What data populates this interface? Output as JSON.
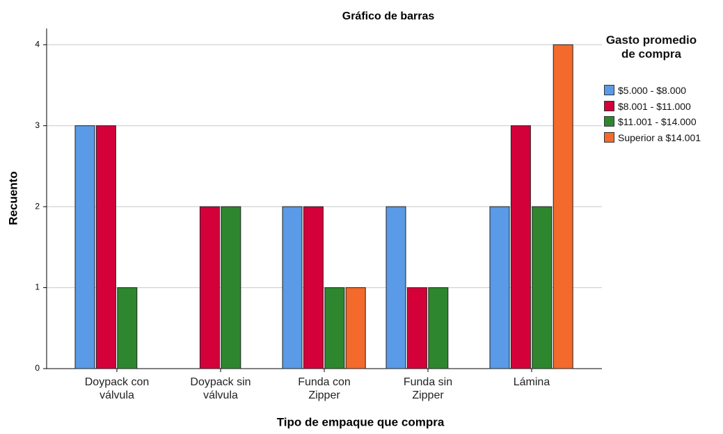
{
  "chart_data": {
    "type": "bar",
    "title": "Gráfico de barras",
    "x_label": "Tipo de empaque que compra",
    "y_label": "Recuento",
    "legend_title": "Gasto promedio de compra",
    "legend": "right",
    "categories": [
      "Doypack con válvula",
      "Doypack sin válvula",
      "Funda con Zipper",
      "Funda sin Zipper",
      "Lámina"
    ],
    "series": [
      {
        "name": "$5.000 - $8.000",
        "color": "#5a9ae6",
        "values": [
          3,
          0,
          2,
          2,
          2
        ]
      },
      {
        "name": "$8.001 - $11.000",
        "color": "#d4003a",
        "values": [
          3,
          2,
          2,
          1,
          3
        ]
      },
      {
        "name": "$11.001 - $14.000",
        "color": "#2e872e",
        "values": [
          1,
          2,
          1,
          1,
          2
        ]
      },
      {
        "name": "Superior a $14.001",
        "color": "#f36a2c",
        "values": [
          0,
          0,
          1,
          0,
          4
        ]
      }
    ],
    "ylim": [
      0,
      4.2
    ],
    "yticks": [
      0,
      1,
      2,
      3,
      4
    ],
    "grid": true
  }
}
